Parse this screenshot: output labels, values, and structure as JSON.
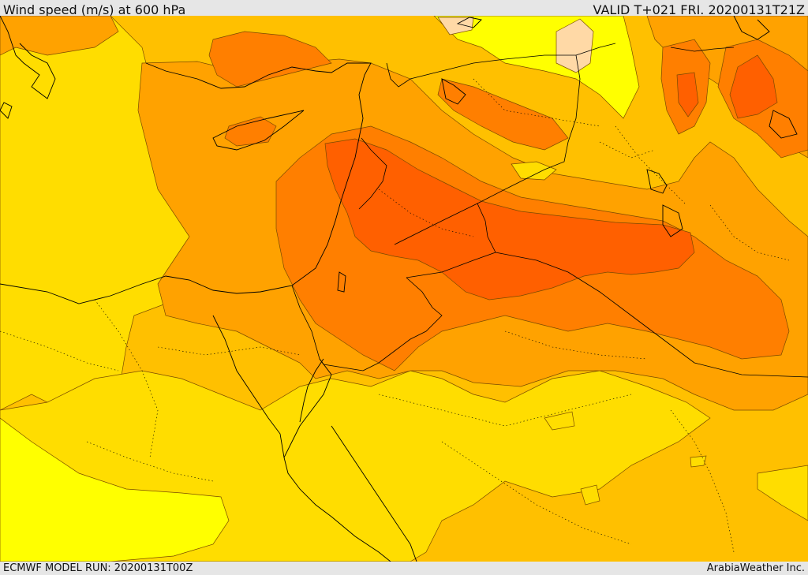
{
  "header": {
    "title": "Wind speed (m/s) at 600 hPa",
    "valid": "VALID T+021 FRI. 20200131T21Z"
  },
  "footer": {
    "model_run": "ECMWF MODEL RUN: 20200131T00Z",
    "credit": "ArabiaWeather Inc."
  },
  "colors": {
    "band_yellow": "#ffff00",
    "band_gold": "#ffdd00",
    "band_light_orange": "#ffc000",
    "band_orange": "#ffa200",
    "band_dark_orange": "#ff7f00",
    "band_red_orange": "#ff6000",
    "band_peach": "#ffd9a6",
    "coastline": "#000000",
    "contour": "#7a4a00"
  },
  "map": {
    "field": "Wind speed",
    "units": "m/s",
    "level": "600 hPa"
  }
}
